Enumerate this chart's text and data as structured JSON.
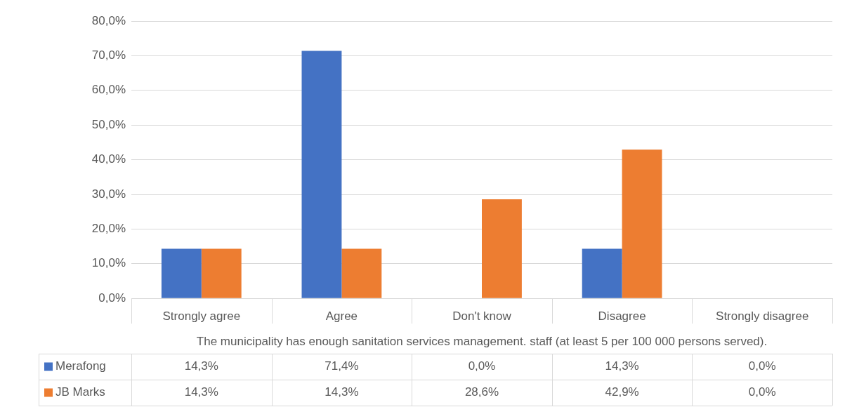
{
  "chart_data": {
    "type": "bar",
    "categories": [
      "Strongly agree",
      "Agree",
      "Don't know",
      "Disagree",
      "Strongly disagree"
    ],
    "xlabel": "The municipality has enough sanitation services management. staff (at least 5 per 100 000 persons served).",
    "series": [
      {
        "name": "Merafong",
        "color": "#4472c4",
        "values": [
          14.3,
          71.4,
          0.0,
          14.3,
          0.0
        ],
        "value_labels": [
          "14,3%",
          "71,4%",
          "0,0%",
          "14,3%",
          "0,0%"
        ]
      },
      {
        "name": "JB Marks",
        "color": "#ed7d31",
        "values": [
          14.3,
          14.3,
          28.6,
          42.9,
          0.0
        ],
        "value_labels": [
          "14,3%",
          "14,3%",
          "28,6%",
          "42,9%",
          "0,0%"
        ]
      }
    ],
    "ylim": [
      0,
      80
    ],
    "yticks": [
      {
        "value": 0,
        "label": "0,0%"
      },
      {
        "value": 10,
        "label": "10,0%"
      },
      {
        "value": 20,
        "label": "20,0%"
      },
      {
        "value": 30,
        "label": "30,0%"
      },
      {
        "value": 40,
        "label": "40,0%"
      },
      {
        "value": 50,
        "label": "50,0%"
      },
      {
        "value": 60,
        "label": "60,0%"
      },
      {
        "value": 70,
        "label": "70,0%"
      },
      {
        "value": 80,
        "label": "80,0%"
      }
    ],
    "grid": "y",
    "legend": "bottom left"
  }
}
